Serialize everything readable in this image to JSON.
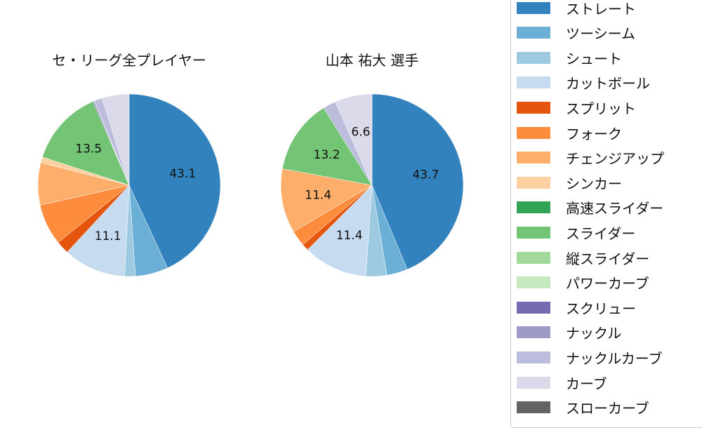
{
  "chart_data": [
    {
      "type": "pie",
      "title": "セ・リーグ全プレイヤー",
      "start_angle": "12 o'clock, clockwise",
      "slices": [
        {
          "label": "ストレート",
          "value": 43.1,
          "color": "#3182bd",
          "show_label": true
        },
        {
          "label": "ツーシーム",
          "value": 5.8,
          "color": "#6baed6",
          "show_label": false
        },
        {
          "label": "シュート",
          "value": 1.9,
          "color": "#9ecae1",
          "show_label": false
        },
        {
          "label": "カットボール",
          "value": 11.1,
          "color": "#c6dbef",
          "show_label": true
        },
        {
          "label": "スプリット",
          "value": 2.3,
          "color": "#e6550d",
          "show_label": false
        },
        {
          "label": "フォーク",
          "value": 7.3,
          "color": "#fd8d3c",
          "show_label": false
        },
        {
          "label": "チェンジアップ",
          "value": 7.5,
          "color": "#fdae6b",
          "show_label": false
        },
        {
          "label": "シンカー",
          "value": 1.0,
          "color": "#fdd0a2",
          "show_label": false
        },
        {
          "label": "スライダー",
          "value": 13.5,
          "color": "#74c476",
          "show_label": true
        },
        {
          "label": "スクリュー",
          "value": 0.2,
          "color": "#756bb1",
          "show_label": false
        },
        {
          "label": "ナックル",
          "value": 0.1,
          "color": "#9e9ac8",
          "show_label": false
        },
        {
          "label": "ナックルカーブ",
          "value": 1.4,
          "color": "#bcbddc",
          "show_label": false
        },
        {
          "label": "カーブ",
          "value": 4.8,
          "color": "#dadaeb",
          "show_label": false
        }
      ]
    },
    {
      "type": "pie",
      "title": "山本 祐大  選手",
      "start_angle": "12 o'clock, clockwise",
      "slices": [
        {
          "label": "ストレート",
          "value": 43.7,
          "color": "#3182bd",
          "show_label": true
        },
        {
          "label": "ツーシーム",
          "value": 3.7,
          "color": "#6baed6",
          "show_label": false
        },
        {
          "label": "シュート",
          "value": 3.7,
          "color": "#9ecae1",
          "show_label": false
        },
        {
          "label": "カットボール",
          "value": 11.4,
          "color": "#c6dbef",
          "show_label": true
        },
        {
          "label": "スプリット",
          "value": 1.2,
          "color": "#e6550d",
          "show_label": false
        },
        {
          "label": "フォーク",
          "value": 2.8,
          "color": "#fd8d3c",
          "show_label": false
        },
        {
          "label": "チェンジアップ",
          "value": 11.4,
          "color": "#fdae6b",
          "show_label": true
        },
        {
          "label": "スライダー",
          "value": 13.2,
          "color": "#74c476",
          "show_label": true
        },
        {
          "label": "ナックルカーブ",
          "value": 2.3,
          "color": "#bcbddc",
          "show_label": false
        },
        {
          "label": "カーブ",
          "value": 6.6,
          "color": "#dadaeb",
          "show_label": true
        }
      ]
    }
  ],
  "titles": {
    "left": "セ・リーグ全プレイヤー",
    "right": "山本 祐大  選手"
  },
  "legend": {
    "position": "right",
    "items": [
      {
        "label": "ストレート",
        "color": "#3182bd"
      },
      {
        "label": "ツーシーム",
        "color": "#6baed6"
      },
      {
        "label": "シュート",
        "color": "#9ecae1"
      },
      {
        "label": "カットボール",
        "color": "#c6dbef"
      },
      {
        "label": "スプリット",
        "color": "#e6550d"
      },
      {
        "label": "フォーク",
        "color": "#fd8d3c"
      },
      {
        "label": "チェンジアップ",
        "color": "#fdae6b"
      },
      {
        "label": "シンカー",
        "color": "#fdd0a2"
      },
      {
        "label": "高速スライダー",
        "color": "#31a354"
      },
      {
        "label": "スライダー",
        "color": "#74c476"
      },
      {
        "label": "縦スライダー",
        "color": "#a1d99b"
      },
      {
        "label": "パワーカーブ",
        "color": "#c7e9c0"
      },
      {
        "label": "スクリュー",
        "color": "#756bb1"
      },
      {
        "label": "ナックル",
        "color": "#9e9ac8"
      },
      {
        "label": "ナックルカーブ",
        "color": "#bcbddc"
      },
      {
        "label": "カーブ",
        "color": "#dadaeb"
      },
      {
        "label": "スローカーブ",
        "color": "#636363"
      }
    ]
  }
}
